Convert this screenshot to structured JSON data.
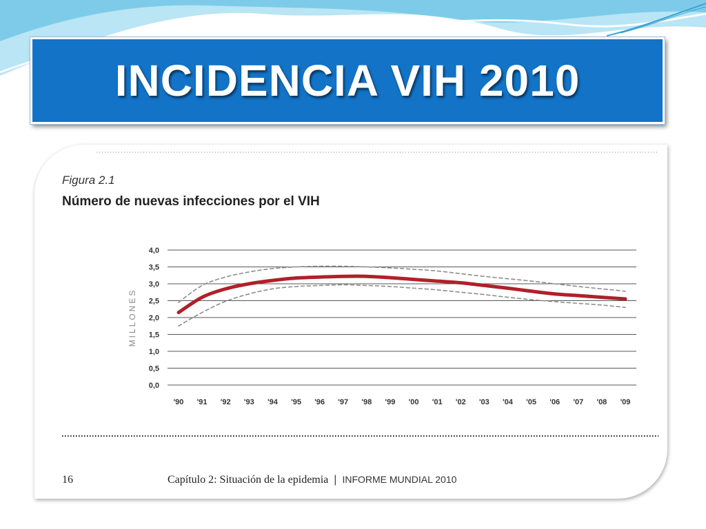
{
  "slide": {
    "title": "INCIDENCIA VIH 2010",
    "colors": {
      "title_bg": "#1273c7",
      "title_text": "#ffffff",
      "decor": "#6ac7e8"
    }
  },
  "figure": {
    "label": "Figura 2.1",
    "title": "Número de nuevas infecciones por el VIH"
  },
  "footer": {
    "page_number": "16",
    "chapter": "Capítulo 2: Situación de la epidemia",
    "separator": "|",
    "report": "INFORME MUNDIAL 2010"
  },
  "chart_data": {
    "type": "line",
    "title": "Número de nuevas infecciones por el VIH",
    "xlabel": "",
    "ylabel": "MILLONES",
    "ylim": [
      0,
      4
    ],
    "y_ticks": [
      "4,0",
      "3,5",
      "3,0",
      "2,5",
      "2,0",
      "1,5",
      "1,0",
      "0,5",
      "0,0"
    ],
    "y_tick_values": [
      4.0,
      3.5,
      3.0,
      2.5,
      2.0,
      1.5,
      1.0,
      0.5,
      0.0
    ],
    "categories": [
      "'90",
      "'91",
      "'92",
      "'93",
      "'94",
      "'95",
      "'96",
      "'97",
      "'98",
      "'99",
      "'00",
      "'01",
      "'02",
      "'03",
      "'04",
      "'05",
      "'06",
      "'07",
      "'08",
      "'09"
    ],
    "grid": true,
    "series": [
      {
        "role": "estimate",
        "color": "#b0202a",
        "style": "solid",
        "values": [
          2.15,
          2.6,
          2.85,
          3.0,
          3.1,
          3.17,
          3.2,
          3.22,
          3.22,
          3.18,
          3.13,
          3.08,
          3.03,
          2.95,
          2.87,
          2.78,
          2.7,
          2.65,
          2.6,
          2.55
        ]
      },
      {
        "role": "upper_bound",
        "color": "#8c8c8c",
        "style": "dashed",
        "values": [
          2.45,
          2.95,
          3.2,
          3.35,
          3.45,
          3.5,
          3.52,
          3.52,
          3.5,
          3.47,
          3.43,
          3.38,
          3.3,
          3.22,
          3.15,
          3.08,
          3.0,
          2.92,
          2.85,
          2.78
        ]
      },
      {
        "role": "lower_bound",
        "color": "#8c8c8c",
        "style": "dashed",
        "values": [
          1.75,
          2.15,
          2.48,
          2.7,
          2.85,
          2.92,
          2.95,
          2.97,
          2.95,
          2.92,
          2.87,
          2.82,
          2.75,
          2.68,
          2.6,
          2.53,
          2.47,
          2.42,
          2.37,
          2.3
        ]
      }
    ]
  }
}
